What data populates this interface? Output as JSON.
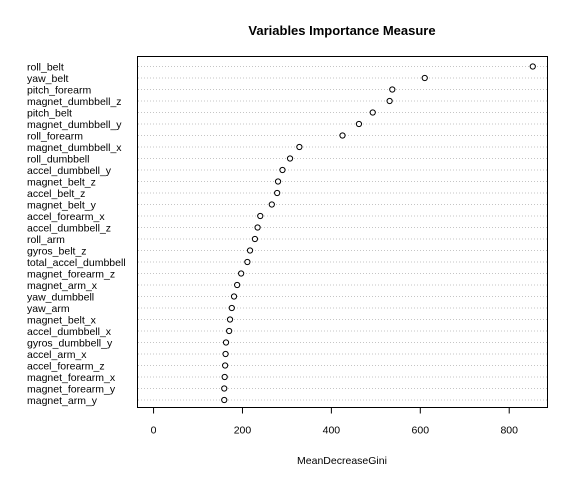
{
  "chart_data": {
    "type": "scatter",
    "title": "Variables Importance Measure",
    "xlabel": "MeanDecreaseGini",
    "ylabel": "",
    "xlim": [
      -35,
      885
    ],
    "xticks": [
      0,
      200,
      400,
      600,
      800
    ],
    "grid": "dotted horizontal lines",
    "categories": [
      "roll_belt",
      "yaw_belt",
      "pitch_forearm",
      "magnet_dumbbell_z",
      "pitch_belt",
      "magnet_dumbbell_y",
      "roll_forearm",
      "magnet_dumbbell_x",
      "roll_dumbbell",
      "accel_dumbbell_y",
      "magnet_belt_z",
      "accel_belt_z",
      "magnet_belt_y",
      "accel_forearm_x",
      "accel_dumbbell_z",
      "roll_arm",
      "gyros_belt_z",
      "total_accel_dumbbell",
      "magnet_forearm_z",
      "magnet_arm_x",
      "yaw_dumbbell",
      "yaw_arm",
      "magnet_belt_x",
      "accel_dumbbell_x",
      "gyros_dumbbell_y",
      "accel_arm_x",
      "accel_forearm_z",
      "magnet_forearm_x",
      "magnet_forearm_y",
      "magnet_arm_y"
    ],
    "values": [
      853,
      610,
      537,
      531,
      493,
      462,
      425,
      328,
      307,
      290,
      280,
      278,
      266,
      240,
      234,
      228,
      217,
      211,
      197,
      188,
      181,
      176,
      172,
      170,
      163,
      162,
      161,
      160,
      159,
      159
    ]
  }
}
